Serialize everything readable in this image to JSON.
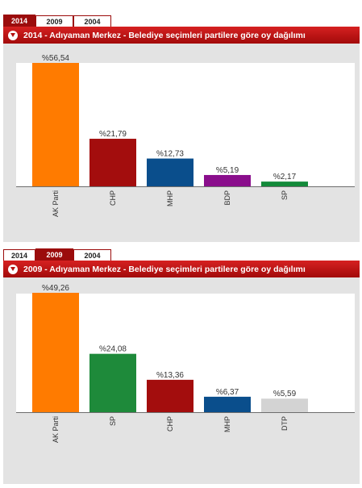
{
  "tabs": [
    "2014",
    "2009",
    "2004"
  ],
  "panels": [
    {
      "active_tab": 0,
      "title": "2014 - Adıyaman Merkez - Belediye seçimleri partilere göre oy dağılımı",
      "icon": "info-circle-icon"
    },
    {
      "active_tab": 1,
      "title": "2009 - Adıyaman Merkez - Belediye seçimleri partilere göre oy dağılımı",
      "icon": "info-circle-icon"
    }
  ],
  "chart_data": [
    {
      "type": "bar",
      "title": "2014 - Adıyaman Merkez - Belediye seçimleri partilere göre oy dağılımı",
      "categories": [
        "AK Parti",
        "CHP",
        "MHP",
        "BDP",
        "SP"
      ],
      "values": [
        56.54,
        21.79,
        12.73,
        5.19,
        2.17
      ],
      "data_labels": [
        "%56,54",
        "%21,79",
        "%12,73",
        "%5,19",
        "%2,17"
      ],
      "colors": [
        "#ff7b00",
        "#a30d0d",
        "#0a4e8c",
        "#8a0e8c",
        "#138a3a"
      ],
      "ylim": [
        0,
        70
      ],
      "grid": false,
      "legend": "none"
    },
    {
      "type": "bar",
      "title": "2009 - Adıyaman Merkez - Belediye seçimleri partilere göre oy dağılımı",
      "categories": [
        "AK Parti",
        "SP",
        "CHP",
        "MHP",
        "DTP"
      ],
      "values": [
        49.26,
        24.08,
        13.36,
        6.37,
        5.59
      ],
      "data_labels": [
        "%49,26",
        "%24,08",
        "%13,36",
        "%6,37",
        "%5,59"
      ],
      "colors": [
        "#ff7b00",
        "#1e8a3a",
        "#a30d0d",
        "#0a4e8c",
        "#d3d3d3"
      ],
      "ylim": [
        0,
        60
      ],
      "grid": false,
      "legend": "none"
    }
  ]
}
